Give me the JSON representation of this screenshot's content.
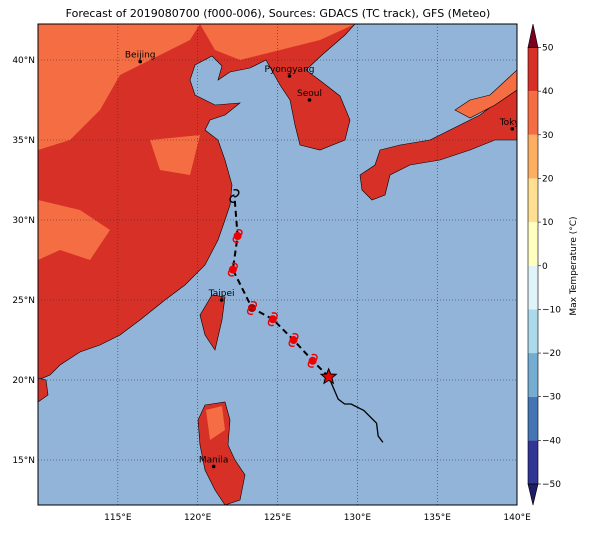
{
  "map": {
    "title": "Forecast of 2019080700 (f000-006), Sources: GDACS (TC track), GFS (Meteo)",
    "lon_ticks": [
      {
        "value": 115,
        "label": "115°E"
      },
      {
        "value": 120,
        "label": "120°E"
      },
      {
        "value": 125,
        "label": "125°E"
      },
      {
        "value": 130,
        "label": "130°E"
      },
      {
        "value": 135,
        "label": "135°E"
      },
      {
        "value": 140,
        "label": "140°E"
      }
    ],
    "lat_ticks": [
      {
        "value": 15,
        "label": "15°N"
      },
      {
        "value": 20,
        "label": "20°N"
      },
      {
        "value": 25,
        "label": "25°N"
      },
      {
        "value": 30,
        "label": "30°N"
      },
      {
        "value": 35,
        "label": "35°N"
      },
      {
        "value": 40,
        "label": "40°N"
      }
    ],
    "cities": [
      {
        "name": "Beijing",
        "lon": 116.4,
        "lat": 39.9
      },
      {
        "name": "Pyongyang",
        "lon": 125.75,
        "lat": 39.0
      },
      {
        "name": "Seoul",
        "lon": 127.0,
        "lat": 37.5
      },
      {
        "name": "Tokyo",
        "lon": 139.7,
        "lat": 35.7
      },
      {
        "name": "Taipei",
        "lon": 121.5,
        "lat": 25.0
      },
      {
        "name": "Manila",
        "lon": 121.0,
        "lat": 14.6
      }
    ],
    "track": {
      "observed": {
        "lon": [
          131.6,
          131.3,
          131.2,
          130.4,
          129.6,
          129.2,
          128.8,
          128.2
        ],
        "lat": [
          16.1,
          16.5,
          17.3,
          18.1,
          18.5,
          18.5,
          18.8,
          20.2
        ]
      },
      "forecast": {
        "lon": [
          128.2,
          127.2,
          126.0,
          124.7,
          123.4,
          122.2,
          122.5,
          122.3
        ],
        "lat": [
          20.2,
          21.2,
          22.5,
          23.8,
          24.5,
          26.9,
          29.0,
          31.5
        ]
      }
    },
    "colorbar": {
      "label": "Max Temperature (°C)",
      "ticks": [
        {
          "value": -50,
          "label": "−50"
        },
        {
          "value": -40,
          "label": "−40"
        },
        {
          "value": -30,
          "label": "−30"
        },
        {
          "value": -20,
          "label": "−20"
        },
        {
          "value": -10,
          "label": "−10"
        },
        0,
        10,
        20,
        30,
        40,
        50
      ],
      "colors": [
        "#313695",
        "#4575b4",
        "#74add1",
        "#abd9e9",
        "#e0f3f8",
        "#ffffbf",
        "#fee090",
        "#fdae61",
        "#f46d43",
        "#d73027"
      ],
      "top_color": "#a50026",
      "extend_low_color": "#1f1d66",
      "extend_high_color": "#7a0020"
    }
  }
}
